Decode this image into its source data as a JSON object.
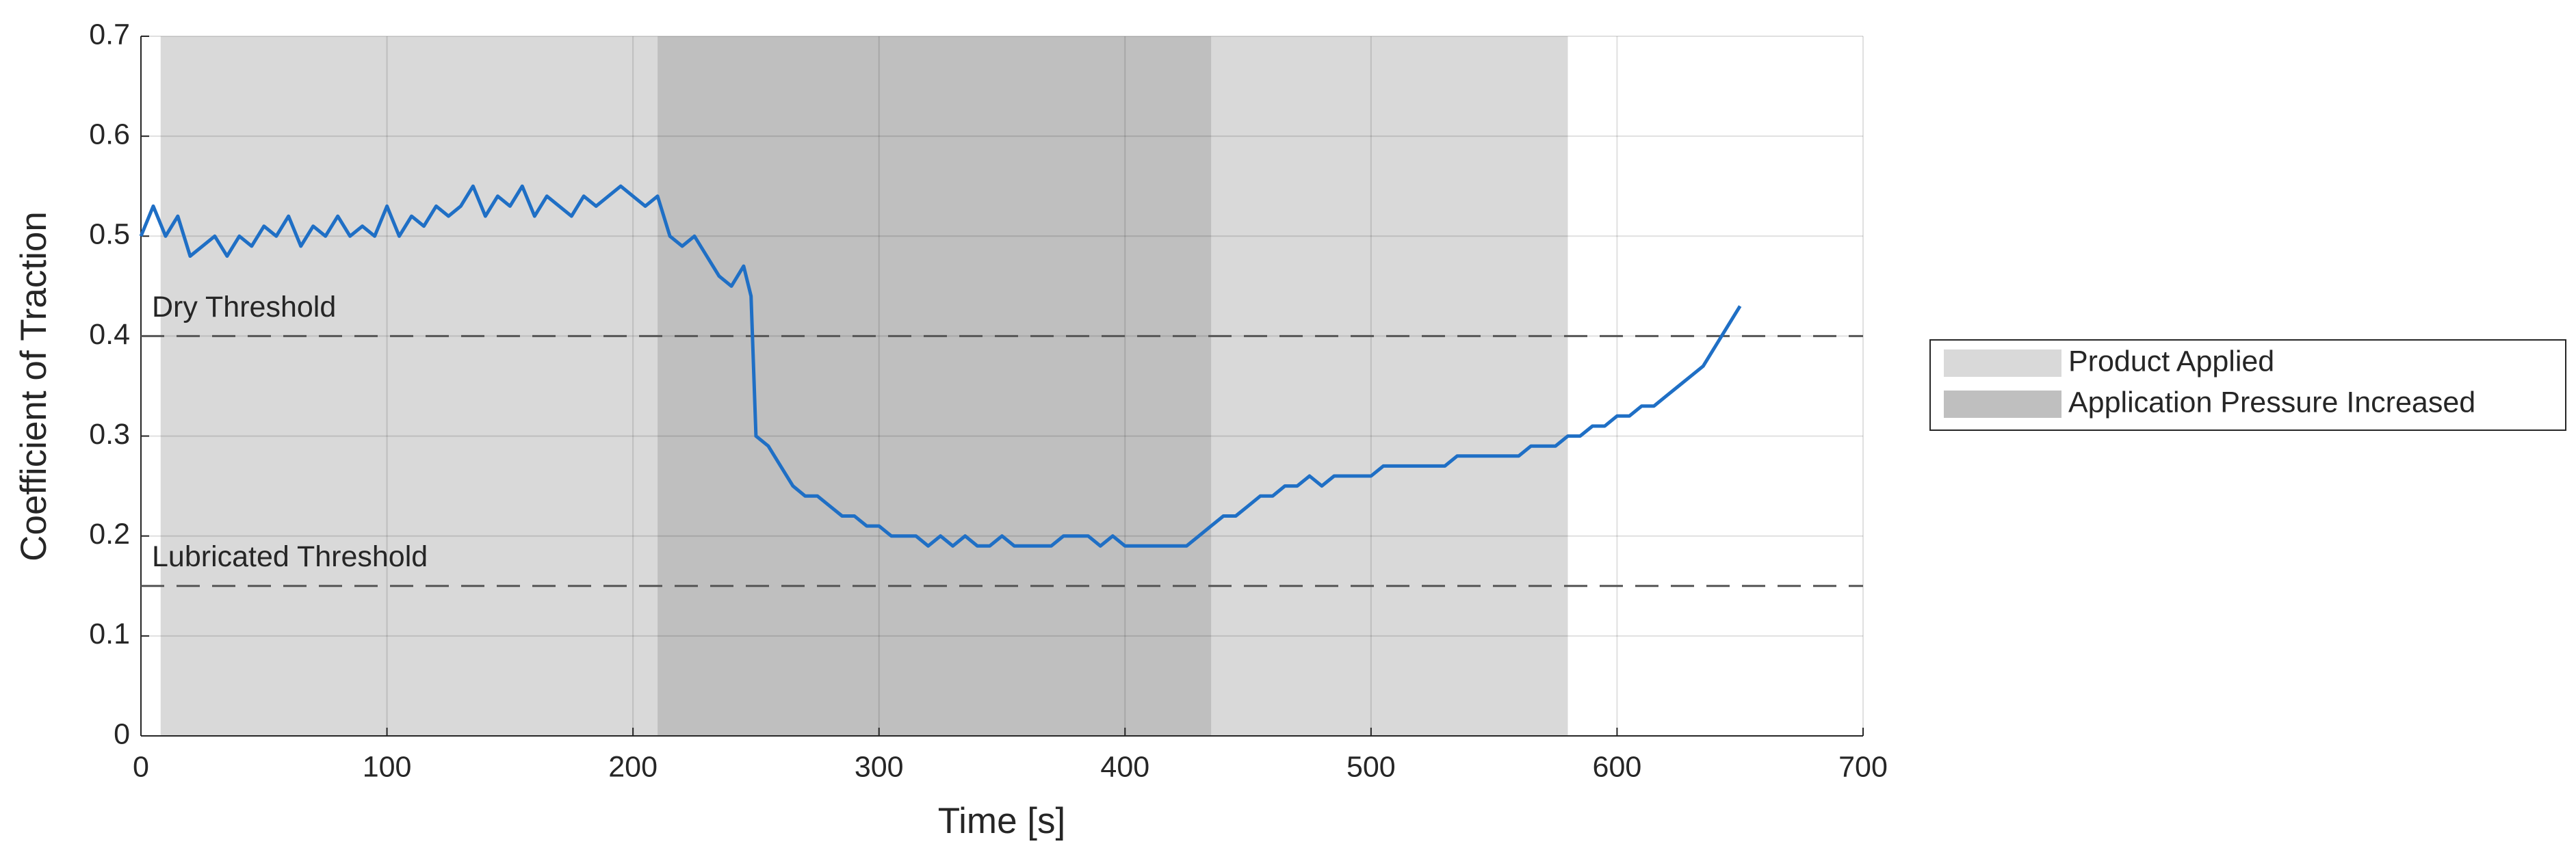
{
  "chart_data": {
    "type": "line",
    "xlabel": "Time [s]",
    "ylabel": "Coefficient of Traction",
    "xlim": [
      0,
      700
    ],
    "xticks": [
      0,
      100,
      200,
      300,
      400,
      500,
      600,
      700
    ],
    "ylim": [
      0,
      0.7
    ],
    "yticks": [
      0,
      0.1,
      0.2,
      0.3,
      0.4,
      0.5,
      0.6,
      0.7
    ],
    "grid": true,
    "spans": [
      {
        "name": "Product Applied",
        "color": "#d9d9d9",
        "x": [
          8,
          580
        ]
      },
      {
        "name": "Application Pressure Increased",
        "color": "#bfbfbf",
        "x": [
          210,
          435
        ]
      }
    ],
    "hlines": [
      {
        "label": "Dry Threshold",
        "value": 0.4
      },
      {
        "label": "Lubricated Threshold",
        "value": 0.15
      }
    ],
    "x": [
      0,
      5,
      10,
      15,
      20,
      25,
      30,
      35,
      40,
      45,
      50,
      55,
      60,
      65,
      70,
      75,
      80,
      85,
      90,
      95,
      100,
      105,
      110,
      115,
      120,
      125,
      130,
      135,
      140,
      145,
      150,
      155,
      160,
      165,
      170,
      175,
      180,
      185,
      190,
      195,
      200,
      205,
      210,
      215,
      220,
      225,
      230,
      235,
      240,
      245,
      248,
      250,
      255,
      260,
      265,
      270,
      275,
      280,
      285,
      290,
      295,
      300,
      305,
      310,
      315,
      320,
      325,
      330,
      335,
      340,
      345,
      350,
      355,
      360,
      365,
      370,
      375,
      380,
      385,
      390,
      395,
      400,
      405,
      410,
      415,
      420,
      425,
      430,
      435,
      440,
      445,
      450,
      455,
      460,
      465,
      470,
      475,
      480,
      485,
      490,
      495,
      500,
      505,
      510,
      515,
      520,
      525,
      530,
      535,
      540,
      545,
      550,
      555,
      560,
      565,
      570,
      575,
      580,
      585,
      590,
      595,
      600,
      605,
      610,
      615,
      620,
      625,
      630,
      635,
      640,
      645,
      650
    ],
    "series": [
      {
        "color": "#1f6fc5",
        "values": [
          0.5,
          0.53,
          0.5,
          0.52,
          0.48,
          0.49,
          0.5,
          0.48,
          0.5,
          0.49,
          0.51,
          0.5,
          0.52,
          0.49,
          0.51,
          0.5,
          0.52,
          0.5,
          0.51,
          0.5,
          0.53,
          0.5,
          0.52,
          0.51,
          0.53,
          0.52,
          0.53,
          0.55,
          0.52,
          0.54,
          0.53,
          0.55,
          0.52,
          0.54,
          0.53,
          0.52,
          0.54,
          0.53,
          0.54,
          0.55,
          0.54,
          0.53,
          0.54,
          0.5,
          0.49,
          0.5,
          0.48,
          0.46,
          0.45,
          0.47,
          0.44,
          0.3,
          0.29,
          0.27,
          0.25,
          0.24,
          0.24,
          0.23,
          0.22,
          0.22,
          0.21,
          0.21,
          0.2,
          0.2,
          0.2,
          0.19,
          0.2,
          0.19,
          0.2,
          0.19,
          0.19,
          0.2,
          0.19,
          0.19,
          0.19,
          0.19,
          0.2,
          0.2,
          0.2,
          0.19,
          0.2,
          0.19,
          0.19,
          0.19,
          0.19,
          0.19,
          0.19,
          0.2,
          0.21,
          0.22,
          0.22,
          0.23,
          0.24,
          0.24,
          0.25,
          0.25,
          0.26,
          0.25,
          0.26,
          0.26,
          0.26,
          0.26,
          0.27,
          0.27,
          0.27,
          0.27,
          0.27,
          0.27,
          0.28,
          0.28,
          0.28,
          0.28,
          0.28,
          0.28,
          0.29,
          0.29,
          0.29,
          0.3,
          0.3,
          0.31,
          0.31,
          0.32,
          0.32,
          0.33,
          0.33,
          0.34,
          0.35,
          0.36,
          0.37,
          0.39,
          0.41,
          0.43
        ]
      }
    ]
  }
}
